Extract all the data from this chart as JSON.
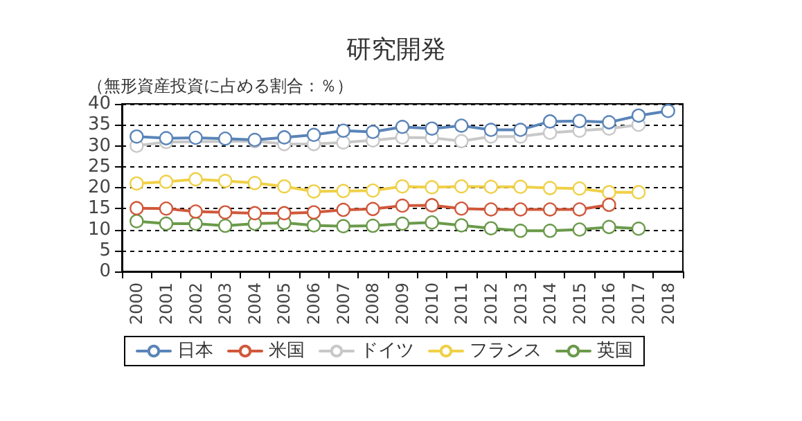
{
  "chart_data": {
    "type": "line",
    "title": "研究開発",
    "subtitle": "（無形資産投資に占める割合：％）",
    "categories": [
      "2000",
      "2001",
      "2002",
      "2003",
      "2004",
      "2005",
      "2006",
      "2007",
      "2008",
      "2009",
      "2010",
      "2011",
      "2012",
      "2013",
      "2014",
      "2015",
      "2016",
      "2017",
      "2018"
    ],
    "series": [
      {
        "name": "日本",
        "color": "#5a84b8",
        "values": [
          32.2,
          31.8,
          31.9,
          31.7,
          31.4,
          32,
          32.6,
          33.6,
          33.3,
          34.5,
          34.1,
          34.8,
          33.8,
          33.8,
          35.8,
          35.9,
          35.6,
          37.2,
          38.3
        ]
      },
      {
        "name": "米国",
        "color": "#d0583a",
        "values": [
          15.1,
          15,
          14.3,
          14.1,
          13.9,
          13.9,
          14.1,
          14.7,
          14.9,
          15.7,
          15.8,
          15,
          14.8,
          14.8,
          14.8,
          14.8,
          15.9,
          null,
          null
        ]
      },
      {
        "name": "ドイツ",
        "color": "#c8c8c8",
        "values": [
          30,
          30.9,
          null,
          null,
          31.1,
          30.4,
          30.4,
          30.8,
          31.3,
          32,
          31.9,
          31.1,
          32.2,
          32.2,
          33.1,
          33.6,
          34.1,
          35,
          null
        ]
      },
      {
        "name": "フランス",
        "color": "#f0d048",
        "values": [
          21,
          21.4,
          22,
          21.6,
          21.1,
          20.3,
          19.1,
          19.2,
          19.3,
          20.3,
          20.1,
          20.3,
          20.2,
          20.2,
          19.9,
          19.8,
          18.9,
          18.9,
          null
        ]
      },
      {
        "name": "英国",
        "color": "#6a9a4a",
        "values": [
          12,
          11.4,
          11.4,
          10.9,
          11.4,
          11.6,
          11,
          10.8,
          10.9,
          11.4,
          11.7,
          11,
          10.3,
          9.7,
          9.7,
          10,
          10.6,
          10.2,
          null
        ]
      }
    ],
    "ylim": [
      0,
      40
    ],
    "yticks": [
      0,
      5,
      10,
      15,
      20,
      25,
      30,
      35,
      40
    ],
    "grid": "y",
    "legend": "bottom",
    "marker": "circle",
    "line_style": "solid"
  }
}
